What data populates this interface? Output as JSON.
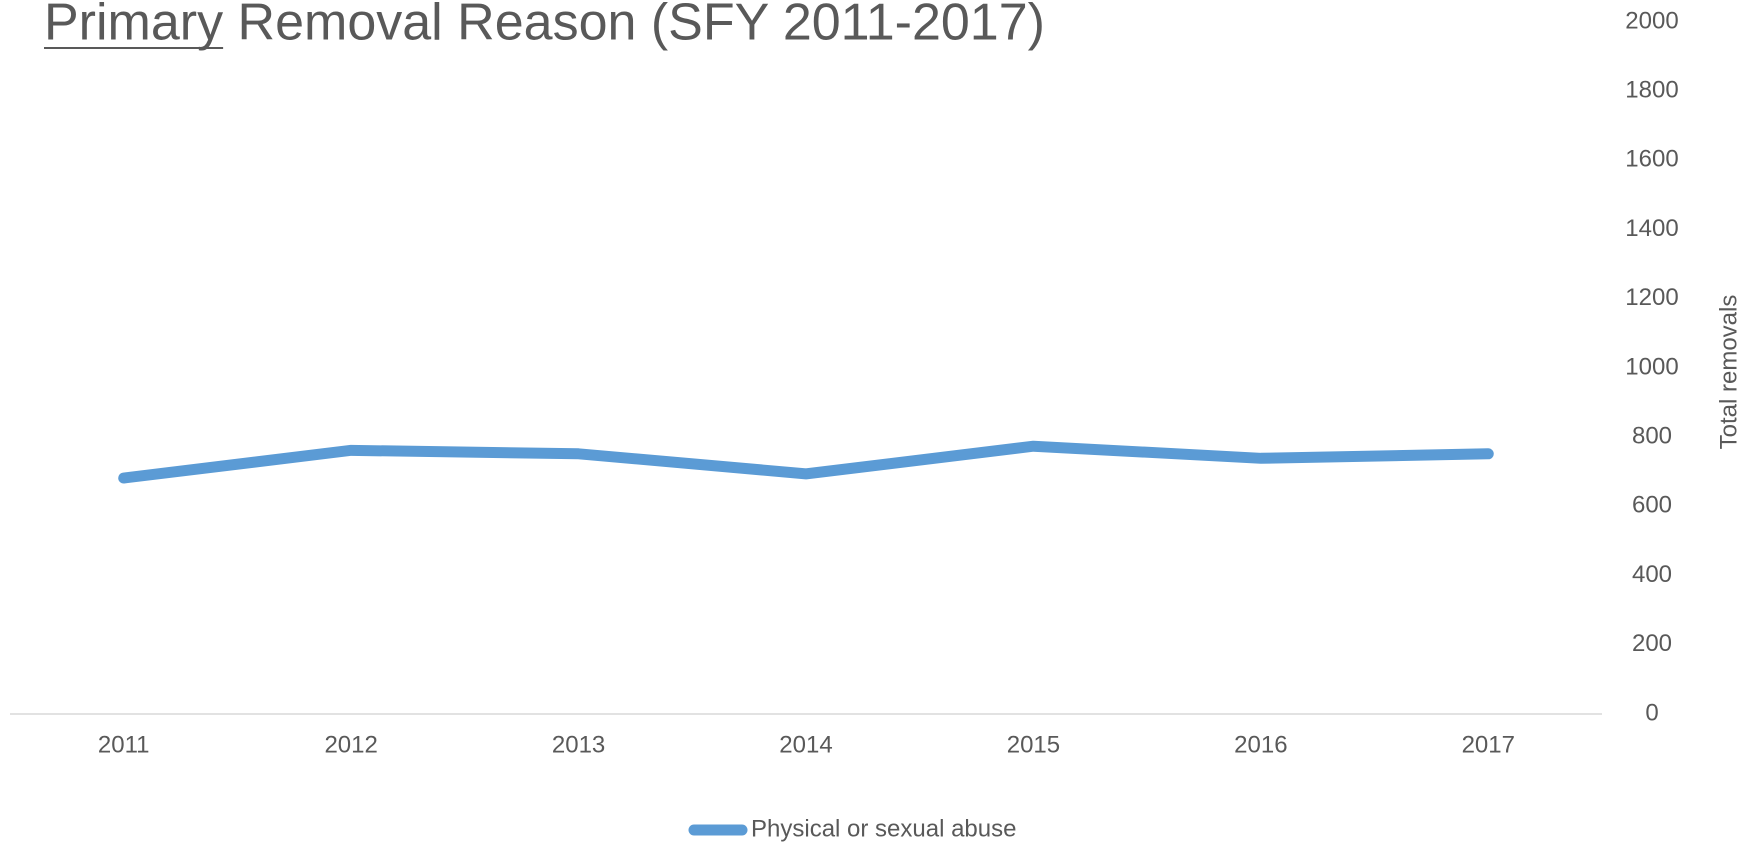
{
  "chart_data": {
    "type": "line",
    "title": "Primary Removal Reason (SFY 2011-2017)",
    "categories": [
      "2011",
      "2012",
      "2013",
      "2014",
      "2015",
      "2016",
      "2017"
    ],
    "series": [
      {
        "name": "Physical or sexual abuse",
        "color": "#5b9bd5",
        "values": [
          682,
          762,
          752,
          694,
          774,
          739,
          752
        ]
      }
    ],
    "y_axis_label": "Total removals",
    "ylim": [
      0,
      2000
    ],
    "yticks": [
      0,
      200,
      400,
      600,
      800,
      1000,
      1200,
      1400,
      1600,
      1800,
      2000
    ],
    "y_axis_side": "right",
    "grid": false,
    "legend": "bottom"
  }
}
